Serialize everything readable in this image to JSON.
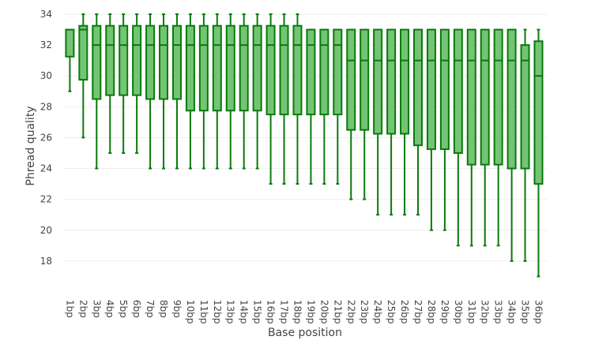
{
  "chart_data": {
    "type": "box",
    "xlabel": "Base position",
    "ylabel": "Phread quality",
    "ylim": [
      16,
      34
    ],
    "yticks": [
      18,
      20,
      22,
      24,
      26,
      28,
      30,
      32,
      34
    ],
    "grid": true,
    "legend": "none",
    "colors": {
      "fill": "#74c476",
      "stroke": "#0a7a0a"
    },
    "categories": [
      "1bp",
      "2bp",
      "3bp",
      "4bp",
      "5bp",
      "6bp",
      "7bp",
      "8bp",
      "9bp",
      "10bp",
      "11bp",
      "12bp",
      "13bp",
      "14bp",
      "15bp",
      "16bp",
      "17bp",
      "18bp",
      "19bp",
      "20bp",
      "21bp",
      "22bp",
      "23bp",
      "24bp",
      "25bp",
      "26bp",
      "27bp",
      "28bp",
      "29bp",
      "30bp",
      "31bp",
      "32bp",
      "33bp",
      "34bp",
      "35bp",
      "36bp"
    ],
    "boxes": [
      {
        "min": 29,
        "q1": 31.25,
        "median": 33,
        "q3": 33,
        "max": 33
      },
      {
        "min": 26,
        "q1": 29.75,
        "median": 33,
        "q3": 33.25,
        "max": 34
      },
      {
        "min": 24,
        "q1": 28.5,
        "median": 32,
        "q3": 33.25,
        "max": 34
      },
      {
        "min": 25,
        "q1": 28.75,
        "median": 32,
        "q3": 33.25,
        "max": 34
      },
      {
        "min": 25,
        "q1": 28.75,
        "median": 32,
        "q3": 33.25,
        "max": 34
      },
      {
        "min": 25,
        "q1": 28.75,
        "median": 32,
        "q3": 33.25,
        "max": 34
      },
      {
        "min": 24,
        "q1": 28.5,
        "median": 32,
        "q3": 33.25,
        "max": 34
      },
      {
        "min": 24,
        "q1": 28.5,
        "median": 32,
        "q3": 33.25,
        "max": 34
      },
      {
        "min": 24,
        "q1": 28.5,
        "median": 32,
        "q3": 33.25,
        "max": 34
      },
      {
        "min": 24,
        "q1": 27.75,
        "median": 32,
        "q3": 33.25,
        "max": 34
      },
      {
        "min": 24,
        "q1": 27.75,
        "median": 32,
        "q3": 33.25,
        "max": 34
      },
      {
        "min": 24,
        "q1": 27.75,
        "median": 32,
        "q3": 33.25,
        "max": 34
      },
      {
        "min": 24,
        "q1": 27.75,
        "median": 32,
        "q3": 33.25,
        "max": 34
      },
      {
        "min": 24,
        "q1": 27.75,
        "median": 32,
        "q3": 33.25,
        "max": 34
      },
      {
        "min": 24,
        "q1": 27.75,
        "median": 32,
        "q3": 33.25,
        "max": 34
      },
      {
        "min": 23,
        "q1": 27.5,
        "median": 32,
        "q3": 33.25,
        "max": 34
      },
      {
        "min": 23,
        "q1": 27.5,
        "median": 32,
        "q3": 33.25,
        "max": 34
      },
      {
        "min": 23,
        "q1": 27.5,
        "median": 32,
        "q3": 33.25,
        "max": 34
      },
      {
        "min": 23,
        "q1": 27.5,
        "median": 32,
        "q3": 33,
        "max": 33
      },
      {
        "min": 23,
        "q1": 27.5,
        "median": 32,
        "q3": 33,
        "max": 33
      },
      {
        "min": 23,
        "q1": 27.5,
        "median": 32,
        "q3": 33,
        "max": 33
      },
      {
        "min": 22,
        "q1": 26.5,
        "median": 31,
        "q3": 33,
        "max": 33
      },
      {
        "min": 22,
        "q1": 26.5,
        "median": 31,
        "q3": 33,
        "max": 33
      },
      {
        "min": 21,
        "q1": 26.25,
        "median": 31,
        "q3": 33,
        "max": 33
      },
      {
        "min": 21,
        "q1": 26.25,
        "median": 31,
        "q3": 33,
        "max": 33
      },
      {
        "min": 21,
        "q1": 26.25,
        "median": 31,
        "q3": 33,
        "max": 33
      },
      {
        "min": 21,
        "q1": 25.5,
        "median": 31,
        "q3": 33,
        "max": 33
      },
      {
        "min": 20,
        "q1": 25.25,
        "median": 31,
        "q3": 33,
        "max": 33
      },
      {
        "min": 20,
        "q1": 25.25,
        "median": 31,
        "q3": 33,
        "max": 33
      },
      {
        "min": 19,
        "q1": 25,
        "median": 31,
        "q3": 33,
        "max": 33
      },
      {
        "min": 19,
        "q1": 24.25,
        "median": 31,
        "q3": 33,
        "max": 33
      },
      {
        "min": 19,
        "q1": 24.25,
        "median": 31,
        "q3": 33,
        "max": 33
      },
      {
        "min": 19,
        "q1": 24.25,
        "median": 31,
        "q3": 33,
        "max": 33
      },
      {
        "min": 18,
        "q1": 24,
        "median": 31,
        "q3": 33,
        "max": 33
      },
      {
        "min": 18,
        "q1": 24,
        "median": 31,
        "q3": 32,
        "max": 33
      },
      {
        "min": 17,
        "q1": 23,
        "median": 30,
        "q3": 32.25,
        "max": 33
      }
    ]
  }
}
